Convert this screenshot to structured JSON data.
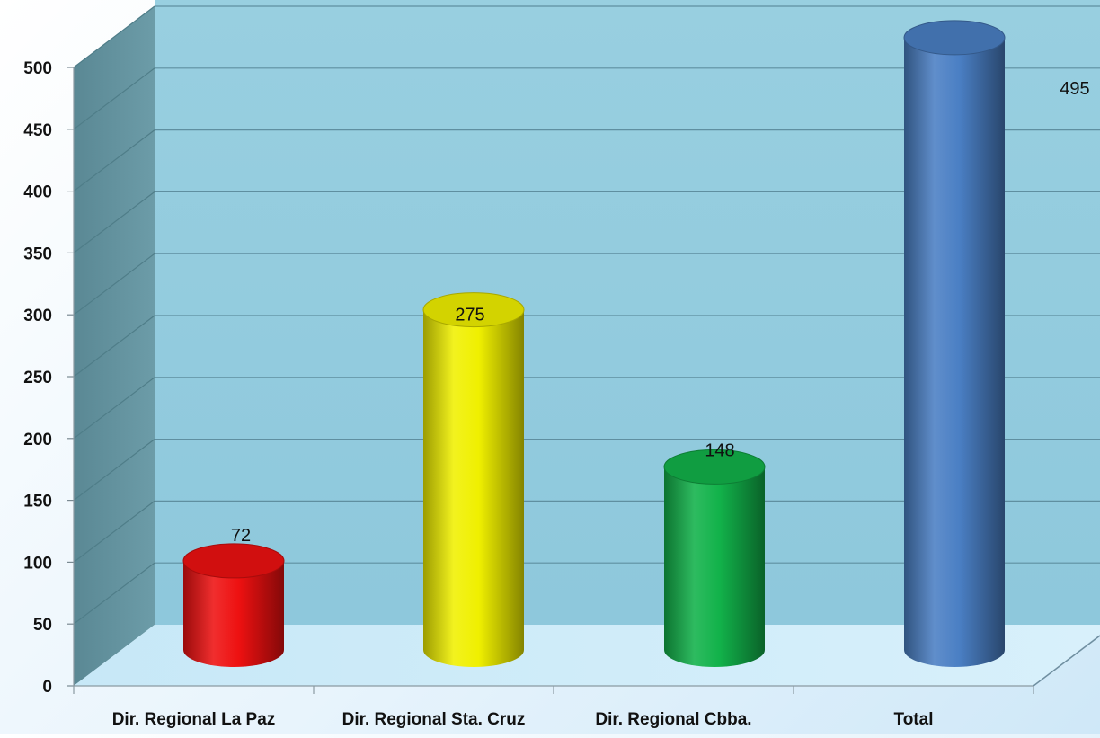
{
  "chart_data": {
    "type": "bar",
    "categories": [
      "Dir. Regional La Paz",
      "Dir. Regional Sta. Cruz",
      "Dir. Regional Cbba.",
      "Total"
    ],
    "values": [
      72,
      275,
      148,
      495
    ],
    "value_labels": [
      "72",
      "275",
      "148",
      "495"
    ],
    "bar_colors": [
      "#ee1111",
      "#f0f000",
      "#12b24a",
      "#4a7fc4"
    ],
    "y_ticks": [
      "0",
      "50",
      "100",
      "150",
      "200",
      "250",
      "300",
      "350",
      "400",
      "450",
      "500"
    ],
    "ylim": [
      0,
      500
    ],
    "grid": true,
    "legend": "none",
    "style": "3d-cylinder",
    "title": "",
    "xlabel": "",
    "ylabel": ""
  }
}
